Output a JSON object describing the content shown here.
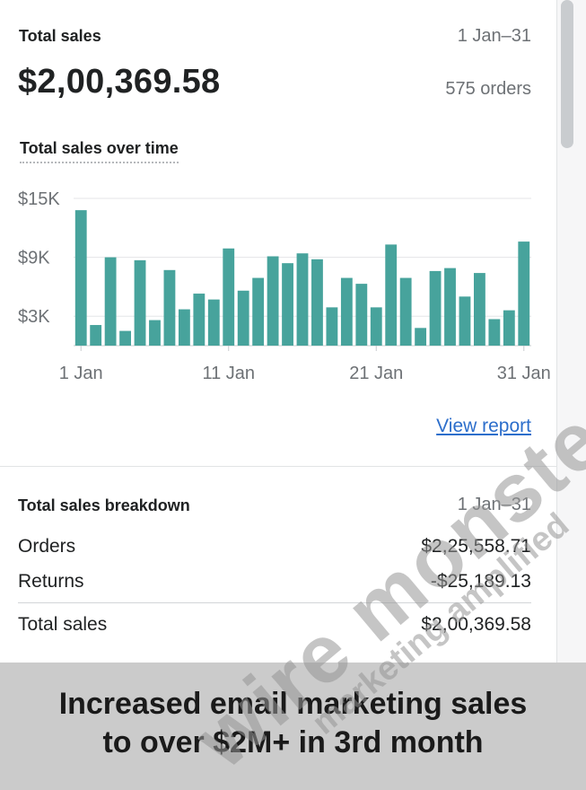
{
  "header": {
    "title": "Total sales",
    "date_range": "1 Jan–31",
    "total": "$2,00,369.58",
    "orders": "575 orders"
  },
  "chart_data": {
    "type": "bar",
    "title": "Total sales over time",
    "xlabel": "",
    "ylabel": "",
    "ylim": [
      0,
      15000
    ],
    "y_ticks": [
      "$15K",
      "$9K",
      "$3K"
    ],
    "x_tick_labels": [
      "1 Jan",
      "11 Jan",
      "21 Jan",
      "31 Jan"
    ],
    "categories": [
      "1",
      "2",
      "3",
      "4",
      "5",
      "6",
      "7",
      "8",
      "9",
      "10",
      "11",
      "12",
      "13",
      "14",
      "15",
      "16",
      "17",
      "18",
      "19",
      "20",
      "21",
      "22",
      "23",
      "24",
      "25",
      "26",
      "27",
      "28",
      "29",
      "30",
      "31"
    ],
    "values": [
      13800,
      2100,
      9000,
      1500,
      8700,
      2600,
      7700,
      3700,
      5300,
      4700,
      9900,
      5600,
      6900,
      9100,
      8400,
      9400,
      8800,
      3900,
      6900,
      6300,
      3900,
      10300,
      6900,
      1800,
      7600,
      7900,
      5000,
      7400,
      2700,
      3600,
      10600
    ],
    "color": "#47a39c",
    "grid": true
  },
  "view_report": "View report",
  "breakdown": {
    "title": "Total sales breakdown",
    "date_range": "1 Jan–31",
    "rows": [
      {
        "label": "Orders",
        "value": "$2,25,558.71"
      },
      {
        "label": "Returns",
        "value": "-$25,189.13"
      },
      {
        "label": "Total sales",
        "value": "$2,00,369.58"
      }
    ]
  },
  "banner": {
    "line1": "Increased email marketing sales",
    "line2": "to over $2M+ in 3rd month"
  },
  "watermark": {
    "main": "wire monster",
    "sub": "marketing amplified"
  }
}
